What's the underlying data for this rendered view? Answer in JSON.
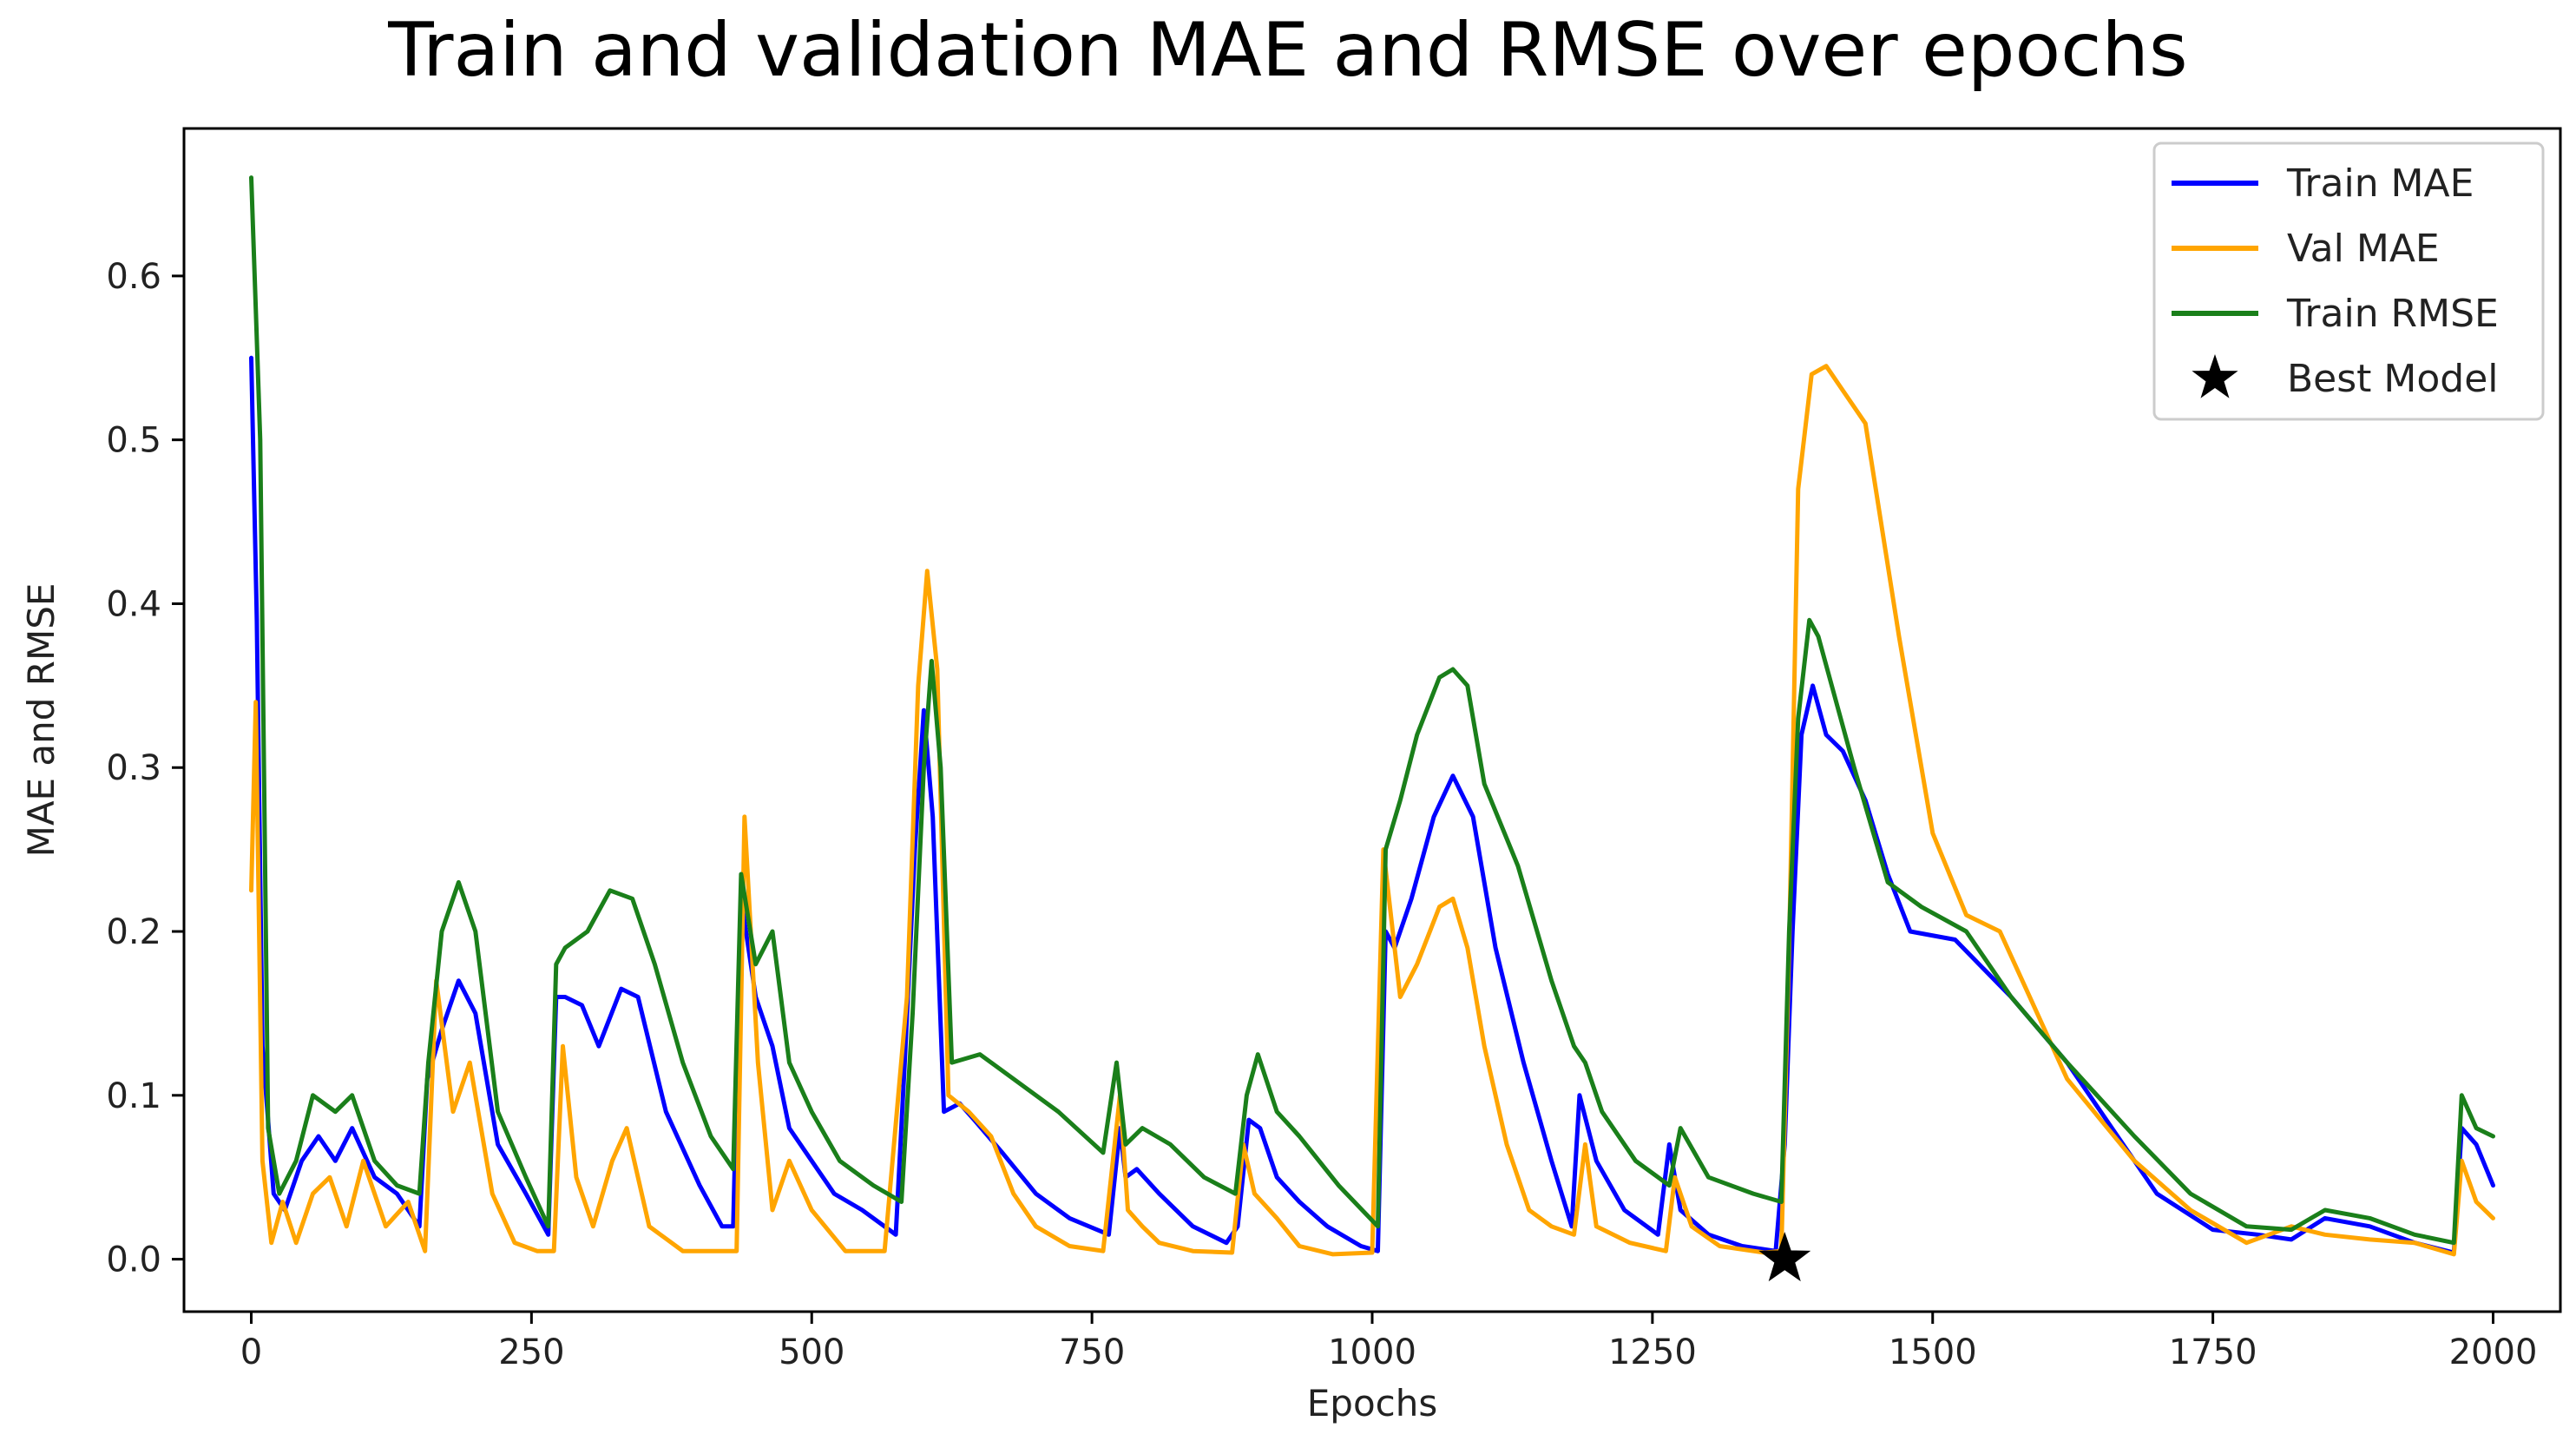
{
  "chart_data": {
    "type": "line",
    "title": "Train and validation MAE and RMSE over epochs",
    "xlabel": "Epochs",
    "ylabel": "MAE and RMSE",
    "xlim": [
      -60,
      2060
    ],
    "ylim": [
      -0.032,
      0.69
    ],
    "xticks": [
      0,
      250,
      500,
      750,
      1000,
      1250,
      1500,
      1750,
      2000
    ],
    "xtick_labels": [
      "0",
      "250",
      "500",
      "750",
      "1000",
      "1250",
      "1500",
      "1750",
      "2000"
    ],
    "yticks": [
      0.0,
      0.1,
      0.2,
      0.3,
      0.4,
      0.5,
      0.6
    ],
    "ytick_labels": [
      "0.0",
      "0.1",
      "0.2",
      "0.3",
      "0.4",
      "0.5",
      "0.6"
    ],
    "legend_position": "top-right",
    "series": [
      {
        "name": "Train MAE",
        "color": "#0000ff",
        "x": [
          0,
          5,
          10,
          20,
          30,
          45,
          60,
          75,
          90,
          110,
          130,
          150,
          157,
          170,
          185,
          200,
          220,
          245,
          265,
          272,
          280,
          295,
          310,
          330,
          345,
          370,
          400,
          420,
          430,
          437,
          450,
          465,
          480,
          500,
          520,
          545,
          575,
          583,
          592,
          600,
          608,
          618,
          632,
          645,
          670,
          700,
          730,
          765,
          775,
          780,
          790,
          810,
          840,
          870,
          880,
          890,
          900,
          915,
          935,
          960,
          990,
          1005,
          1012,
          1020,
          1035,
          1055,
          1072,
          1090,
          1110,
          1135,
          1160,
          1178,
          1185,
          1200,
          1225,
          1255,
          1265,
          1275,
          1300,
          1330,
          1360,
          1368,
          1375,
          1383,
          1393,
          1405,
          1420,
          1440,
          1460,
          1480,
          1520,
          1570,
          1620,
          1660,
          1700,
          1750,
          1790,
          1820,
          1850,
          1890,
          1930,
          1965,
          1972,
          1985,
          2000
        ],
        "y": [
          0.55,
          0.39,
          0.13,
          0.04,
          0.03,
          0.06,
          0.075,
          0.06,
          0.08,
          0.05,
          0.04,
          0.02,
          0.11,
          0.14,
          0.17,
          0.15,
          0.07,
          0.04,
          0.015,
          0.16,
          0.16,
          0.155,
          0.13,
          0.165,
          0.16,
          0.09,
          0.045,
          0.02,
          0.02,
          0.22,
          0.16,
          0.13,
          0.08,
          0.06,
          0.04,
          0.03,
          0.015,
          0.12,
          0.25,
          0.335,
          0.27,
          0.09,
          0.095,
          0.085,
          0.065,
          0.04,
          0.025,
          0.015,
          0.08,
          0.05,
          0.055,
          0.04,
          0.02,
          0.01,
          0.02,
          0.085,
          0.08,
          0.05,
          0.035,
          0.02,
          0.008,
          0.005,
          0.2,
          0.19,
          0.22,
          0.27,
          0.295,
          0.27,
          0.19,
          0.12,
          0.06,
          0.02,
          0.1,
          0.06,
          0.03,
          0.015,
          0.07,
          0.03,
          0.015,
          0.008,
          0.005,
          0.07,
          0.2,
          0.32,
          0.35,
          0.32,
          0.31,
          0.28,
          0.235,
          0.2,
          0.195,
          0.16,
          0.12,
          0.08,
          0.04,
          0.018,
          0.015,
          0.012,
          0.025,
          0.02,
          0.01,
          0.004,
          0.08,
          0.07,
          0.045
        ]
      },
      {
        "name": "Val MAE",
        "color": "#ffa500",
        "x": [
          0,
          4,
          10,
          18,
          28,
          40,
          55,
          70,
          85,
          100,
          120,
          140,
          155,
          165,
          180,
          195,
          215,
          235,
          255,
          270,
          278,
          290,
          305,
          322,
          335,
          355,
          385,
          415,
          433,
          440,
          452,
          465,
          480,
          500,
          530,
          565,
          585,
          595,
          603,
          612,
          622,
          640,
          660,
          680,
          700,
          730,
          760,
          775,
          782,
          795,
          810,
          840,
          875,
          885,
          895,
          915,
          935,
          965,
          1000,
          1010,
          1025,
          1040,
          1060,
          1072,
          1085,
          1100,
          1120,
          1140,
          1160,
          1180,
          1190,
          1200,
          1230,
          1262,
          1270,
          1285,
          1310,
          1350,
          1365,
          1372,
          1380,
          1392,
          1405,
          1420,
          1440,
          1470,
          1500,
          1530,
          1560,
          1620,
          1680,
          1730,
          1780,
          1820,
          1850,
          1890,
          1930,
          1965,
          1972,
          1985,
          2000
        ],
        "y": [
          0.225,
          0.34,
          0.06,
          0.01,
          0.035,
          0.01,
          0.04,
          0.05,
          0.02,
          0.06,
          0.02,
          0.035,
          0.005,
          0.17,
          0.09,
          0.12,
          0.04,
          0.01,
          0.005,
          0.005,
          0.13,
          0.05,
          0.02,
          0.06,
          0.08,
          0.02,
          0.005,
          0.005,
          0.005,
          0.27,
          0.12,
          0.03,
          0.06,
          0.03,
          0.005,
          0.005,
          0.16,
          0.35,
          0.42,
          0.36,
          0.1,
          0.09,
          0.075,
          0.04,
          0.02,
          0.008,
          0.005,
          0.1,
          0.03,
          0.02,
          0.01,
          0.005,
          0.004,
          0.07,
          0.04,
          0.025,
          0.008,
          0.003,
          0.004,
          0.25,
          0.16,
          0.18,
          0.215,
          0.22,
          0.19,
          0.13,
          0.07,
          0.03,
          0.02,
          0.015,
          0.07,
          0.02,
          0.01,
          0.005,
          0.05,
          0.02,
          0.008,
          0.004,
          0.005,
          0.19,
          0.47,
          0.54,
          0.545,
          0.53,
          0.51,
          0.38,
          0.26,
          0.21,
          0.2,
          0.11,
          0.06,
          0.03,
          0.01,
          0.02,
          0.015,
          0.012,
          0.01,
          0.003,
          0.06,
          0.035,
          0.025
        ]
      },
      {
        "name": "Train RMSE",
        "color": "#1a7f1a",
        "x": [
          0,
          4,
          8,
          15,
          25,
          40,
          55,
          75,
          90,
          110,
          130,
          150,
          158,
          170,
          185,
          200,
          220,
          245,
          265,
          272,
          280,
          300,
          320,
          340,
          360,
          385,
          410,
          430,
          437,
          450,
          465,
          480,
          500,
          525,
          555,
          580,
          590,
          600,
          607,
          615,
          625,
          650,
          680,
          720,
          760,
          772,
          780,
          795,
          820,
          850,
          878,
          888,
          898,
          915,
          935,
          970,
          1005,
          1012,
          1025,
          1040,
          1060,
          1072,
          1085,
          1100,
          1130,
          1160,
          1180,
          1190,
          1205,
          1235,
          1265,
          1275,
          1300,
          1340,
          1365,
          1372,
          1380,
          1390,
          1398,
          1410,
          1430,
          1460,
          1490,
          1530,
          1570,
          1620,
          1680,
          1730,
          1780,
          1820,
          1850,
          1890,
          1930,
          1965,
          1972,
          1985,
          2000
        ],
        "y": [
          0.66,
          0.58,
          0.5,
          0.08,
          0.04,
          0.06,
          0.1,
          0.09,
          0.1,
          0.06,
          0.045,
          0.04,
          0.12,
          0.2,
          0.23,
          0.2,
          0.09,
          0.05,
          0.02,
          0.18,
          0.19,
          0.2,
          0.225,
          0.22,
          0.18,
          0.12,
          0.075,
          0.055,
          0.235,
          0.18,
          0.2,
          0.12,
          0.09,
          0.06,
          0.045,
          0.035,
          0.15,
          0.3,
          0.365,
          0.3,
          0.12,
          0.125,
          0.11,
          0.09,
          0.065,
          0.12,
          0.07,
          0.08,
          0.07,
          0.05,
          0.04,
          0.1,
          0.125,
          0.09,
          0.075,
          0.045,
          0.02,
          0.25,
          0.28,
          0.32,
          0.355,
          0.36,
          0.35,
          0.29,
          0.24,
          0.17,
          0.13,
          0.12,
          0.09,
          0.06,
          0.045,
          0.08,
          0.05,
          0.04,
          0.035,
          0.2,
          0.33,
          0.39,
          0.38,
          0.35,
          0.3,
          0.23,
          0.215,
          0.2,
          0.16,
          0.12,
          0.075,
          0.04,
          0.02,
          0.018,
          0.03,
          0.025,
          0.015,
          0.01,
          0.1,
          0.08,
          0.075
        ]
      }
    ],
    "markers": [
      {
        "name": "Best Model",
        "x": 1368,
        "y": 0.0,
        "symbol": "star",
        "color": "#000000"
      }
    ]
  }
}
